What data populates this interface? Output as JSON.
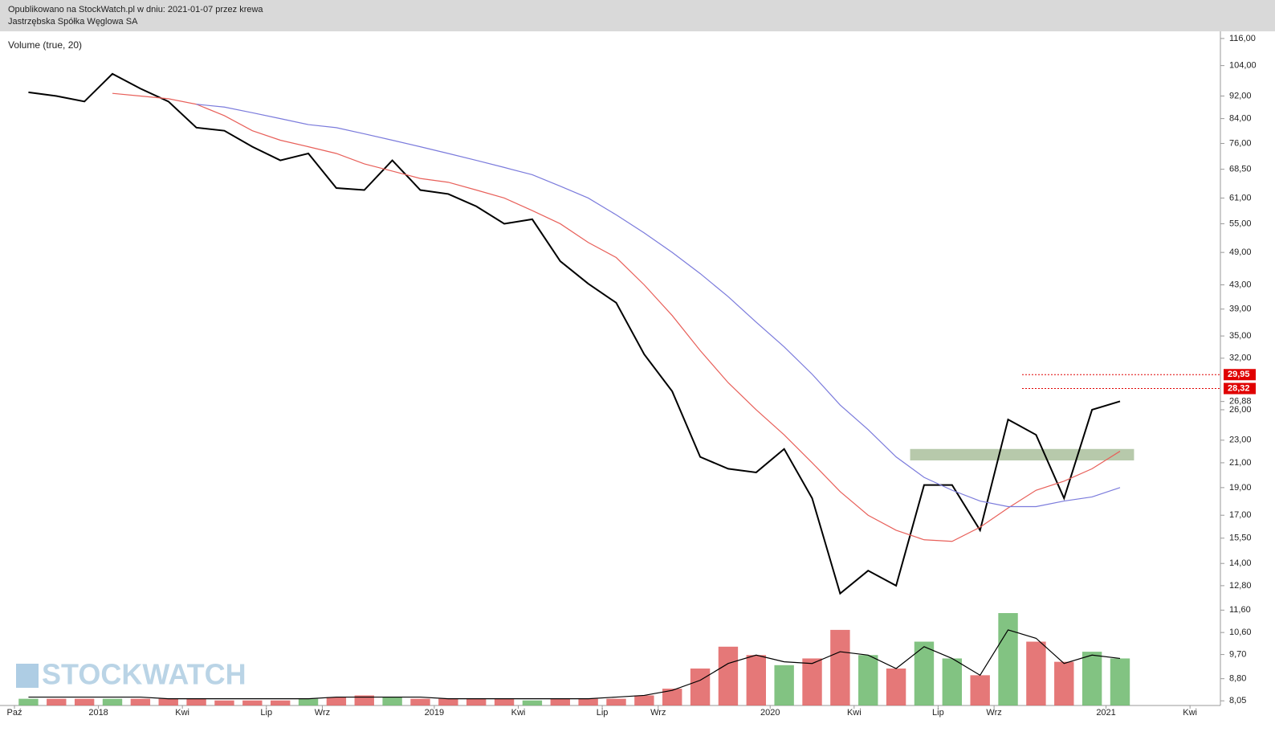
{
  "header": {
    "line1": "Opublikowano na StockWatch.pl w dniu: 2021-01-07 przez krewa",
    "line2": "Jastrzębska Spółka Węglowa SA"
  },
  "chart_data": {
    "type": "line",
    "indicator_label": "Volume (true, 20)",
    "watermark": "STOCKWATCH",
    "log_scale": true,
    "x": [
      "2017-10",
      "2017-11",
      "2017-12",
      "2018-01",
      "2018-02",
      "2018-03",
      "2018-04",
      "2018-05",
      "2018-06",
      "2018-07",
      "2018-08",
      "2018-09",
      "2018-10",
      "2018-11",
      "2018-12",
      "2019-01",
      "2019-02",
      "2019-03",
      "2019-04",
      "2019-05",
      "2019-06",
      "2019-07",
      "2019-08",
      "2019-09",
      "2019-10",
      "2019-11",
      "2019-12",
      "2020-01",
      "2020-02",
      "2020-03",
      "2020-04",
      "2020-05",
      "2020-06",
      "2020-07",
      "2020-08",
      "2020-09",
      "2020-10",
      "2020-11",
      "2020-12",
      "2021-01"
    ],
    "series": [
      {
        "color": "#000000",
        "values": [
          93.4,
          92,
          90,
          100.6,
          94.8,
          90,
          81,
          80,
          75,
          71,
          73,
          63.5,
          63,
          71,
          63,
          62,
          59,
          55,
          56,
          47.3,
          43.2,
          40,
          32.5,
          28,
          21.5,
          20.5,
          20.2,
          22.2,
          18.2,
          12.4,
          13.6,
          12.8,
          19.2,
          19.2,
          16,
          25,
          23.5,
          18.2,
          26,
          26.9
        ]
      },
      {
        "color": "#e8605a",
        "values": [
          null,
          null,
          null,
          93,
          92,
          91,
          89,
          85,
          80,
          77,
          75,
          73,
          70,
          68,
          66,
          65,
          63,
          61,
          58,
          55,
          51,
          48,
          43,
          38,
          33,
          29,
          26,
          23.5,
          21,
          18.7,
          17,
          16,
          15.4,
          15.3,
          16.2,
          17.5,
          18.8,
          19.5,
          20.5,
          22
        ]
      },
      {
        "color": "#7b7bdc",
        "values": [
          null,
          null,
          null,
          null,
          null,
          null,
          89,
          88,
          86,
          84,
          82,
          81,
          79,
          77,
          75,
          73,
          71,
          69,
          67,
          64,
          61,
          57,
          53,
          49,
          45,
          41,
          37,
          33.5,
          30,
          26.5,
          24,
          21.5,
          19.8,
          18.8,
          18,
          17.6,
          17.6,
          18,
          18.3,
          19
        ]
      }
    ],
    "ylim": [
      7.9,
      119
    ],
    "yticks": [
      {
        "value": 116,
        "label": "116,00"
      },
      {
        "value": 104,
        "label": "104,00"
      },
      {
        "value": 92,
        "label": "92,00"
      },
      {
        "value": 84,
        "label": "84,00"
      },
      {
        "value": 76,
        "label": "76,00"
      },
      {
        "value": 68.5,
        "label": "68,50"
      },
      {
        "value": 61,
        "label": "61,00"
      },
      {
        "value": 55,
        "label": "55,00"
      },
      {
        "value": 49,
        "label": "49,00"
      },
      {
        "value": 43,
        "label": "43,00"
      },
      {
        "value": 39,
        "label": "39,00"
      },
      {
        "value": 35,
        "label": "35,00"
      },
      {
        "value": 32,
        "label": "32,00"
      },
      {
        "value": 26.88,
        "label": "26,88"
      },
      {
        "value": 26,
        "label": "26,00"
      },
      {
        "value": 23,
        "label": "23,00"
      },
      {
        "value": 21,
        "label": "21,00"
      },
      {
        "value": 19,
        "label": "19,00"
      },
      {
        "value": 17,
        "label": "17,00"
      },
      {
        "value": 15.5,
        "label": "15,50"
      },
      {
        "value": 14,
        "label": "14,00"
      },
      {
        "value": 12.8,
        "label": "12,80"
      },
      {
        "value": 11.6,
        "label": "11,60"
      },
      {
        "value": 10.6,
        "label": "10,60"
      },
      {
        "value": 9.7,
        "label": "9,70"
      },
      {
        "value": 8.8,
        "label": "8,80"
      },
      {
        "value": 8.05,
        "label": "8,05"
      }
    ],
    "xlim": [
      "2017-10",
      "2021-05"
    ],
    "xticks": [
      {
        "value": "2017-10",
        "label": "Paź"
      },
      {
        "value": "2018-01",
        "label": "2018"
      },
      {
        "value": "2018-04",
        "label": "Kwi"
      },
      {
        "value": "2018-07",
        "label": "Lip"
      },
      {
        "value": "2018-09",
        "label": "Wrz"
      },
      {
        "value": "2019-01",
        "label": "2019"
      },
      {
        "value": "2019-04",
        "label": "Kwi"
      },
      {
        "value": "2019-07",
        "label": "Lip"
      },
      {
        "value": "2019-09",
        "label": "Wrz"
      },
      {
        "value": "2020-01",
        "label": "2020"
      },
      {
        "value": "2020-04",
        "label": "Kwi"
      },
      {
        "value": "2020-07",
        "label": "Lip"
      },
      {
        "value": "2020-09",
        "label": "Wrz"
      },
      {
        "value": "2021-01",
        "label": "2021"
      },
      {
        "value": "2021-04",
        "label": "Kwi"
      }
    ],
    "levels": [
      {
        "value": 29.95,
        "label": "29,95",
        "from": "2020-10"
      },
      {
        "value": 28.32,
        "label": "28,32",
        "from": "2020-10"
      }
    ],
    "level_color": "#e00000",
    "zone": {
      "x": [
        "2020-06",
        "2021-02"
      ],
      "y": [
        21.2,
        22.2
      ],
      "color": "#b7c9ab"
    },
    "volume": {
      "values": [
        4,
        4,
        4,
        4,
        4,
        4,
        4,
        3,
        3,
        3,
        4,
        5,
        6,
        5,
        4,
        4,
        4,
        4,
        3,
        4,
        4,
        4,
        6,
        10,
        22,
        35,
        30,
        24,
        28,
        45,
        30,
        22,
        38,
        28,
        18,
        55,
        38,
        26,
        32,
        28
      ],
      "ma": [
        5,
        5,
        5,
        5,
        5,
        4,
        4,
        4,
        4,
        4,
        4,
        5,
        5,
        5,
        5,
        4,
        4,
        4,
        4,
        4,
        4,
        5,
        6,
        9,
        15,
        25,
        30,
        26,
        25,
        32,
        30,
        22,
        35,
        28,
        18,
        45,
        40,
        25,
        30,
        28
      ],
      "up_color": "#6cb86c",
      "down_color": "#e06060",
      "ma_color": "#000000"
    }
  }
}
